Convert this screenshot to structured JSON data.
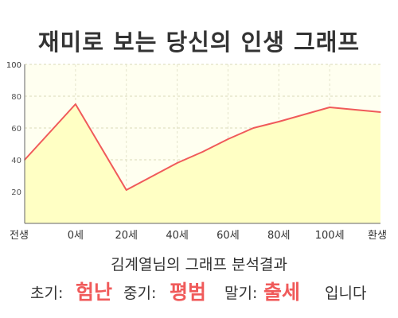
{
  "title": "재미로 보는 당신의 인생 그래프",
  "summary": {
    "heading": "김계열님의 그래프 분석결과",
    "early_label": "초기:",
    "early_value": "험난",
    "middle_label": "중기:",
    "middle_value": "평범",
    "late_label": "말기:",
    "late_value": "출세",
    "ending": "입니다"
  },
  "colors": {
    "line": "#f05a5a",
    "fill": "#ffffc4",
    "plot_bg": "#fffff0",
    "highlight": "#f05a5a"
  },
  "chart_data": {
    "type": "area",
    "title": "재미로 보는 당신의 인생 그래프",
    "xlabel": "",
    "ylabel": "",
    "x_ticks": [
      "전생",
      "0세",
      "20세",
      "40세",
      "60세",
      "80세",
      "100세",
      "환생"
    ],
    "y_ticks": [
      "20",
      "40",
      "60",
      "80",
      "100"
    ],
    "ylim": [
      0,
      100
    ],
    "grid": true,
    "series": [
      {
        "points": [
          {
            "x": -20,
            "y": 40
          },
          {
            "x": 0,
            "y": 75
          },
          {
            "x": 20,
            "y": 21
          },
          {
            "x": 40,
            "y": 38
          },
          {
            "x": 50,
            "y": 45
          },
          {
            "x": 60,
            "y": 53
          },
          {
            "x": 70,
            "y": 60
          },
          {
            "x": 80,
            "y": 64
          },
          {
            "x": 100,
            "y": 73
          },
          {
            "x": 120,
            "y": 70
          }
        ]
      }
    ]
  }
}
